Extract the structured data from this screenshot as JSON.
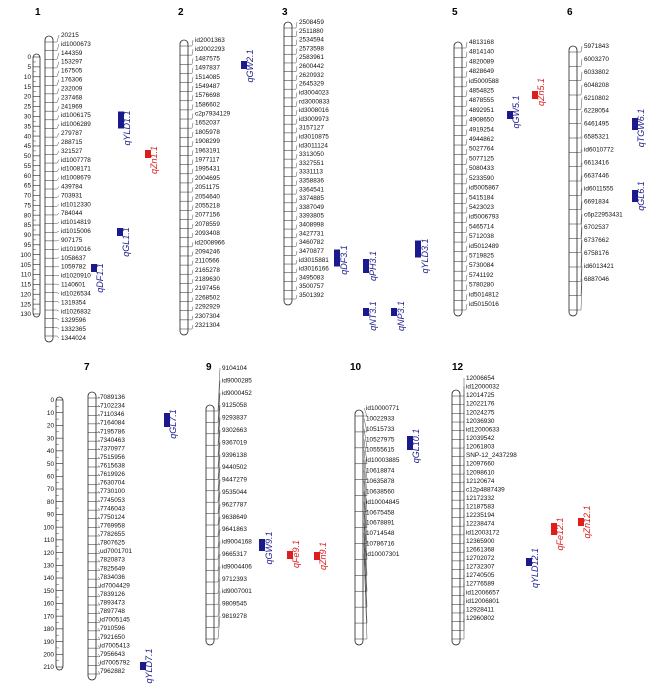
{
  "colors": {
    "blue": "#1a1a8c",
    "red": "#dc1e1e",
    "line": "#222222",
    "chrom_fill": "#ffffff"
  },
  "ruler": {
    "top": [
      "0",
      "5",
      "10",
      "15",
      "20",
      "25",
      "30",
      "35",
      "40",
      "45",
      "50",
      "55",
      "60",
      "65",
      "70",
      "75",
      "80",
      "85",
      "90",
      "95",
      "100",
      "105",
      "110",
      "115",
      "120",
      "125",
      "130"
    ],
    "bottom": [
      "0",
      "10",
      "20",
      "30",
      "40",
      "50",
      "60",
      "70",
      "80",
      "90",
      "100",
      "110",
      "120",
      "130",
      "140",
      "150",
      "160",
      "170",
      "180",
      "190",
      "200",
      "210"
    ]
  },
  "chromosomes": [
    {
      "name": "1",
      "markers": [
        "20215",
        "id1000673",
        "144359",
        "153297",
        "167505",
        "176306",
        "232009",
        "237468",
        "241969",
        "id1006175",
        "id1006289",
        "279787",
        "288715",
        "321527",
        "id1007778",
        "id1008171",
        "id1008679",
        "439784",
        "703931",
        "id1012330",
        "784044",
        "id1014819",
        "id1015006",
        "907175",
        "id1019016",
        "1058637",
        "1059782",
        "id1020910",
        "1140601",
        "id1026534",
        "1319354",
        "id1026832",
        "1329596",
        "1332365",
        "1344024"
      ],
      "qtls": [
        {
          "label": "qYLD1.1",
          "color": "blue"
        },
        {
          "label": "qZn1.1",
          "color": "red"
        },
        {
          "label": "qGL1.1",
          "color": "blue"
        },
        {
          "label": "qDF1.1",
          "color": "blue"
        }
      ]
    },
    {
      "name": "2",
      "markers": [
        "id2001363",
        "id2002293",
        "1487575",
        "1497837",
        "1514085",
        "1549487",
        "1576698",
        "1586602",
        "c2p7934129",
        "1652037",
        "1805978",
        "1908299",
        "1963191",
        "1977117",
        "1995431",
        "2004695",
        "2051175",
        "2054640",
        "2055218",
        "2077156",
        "2078559",
        "2093408",
        "id2008966",
        "2094246",
        "2110566",
        "2165278",
        "2189630",
        "2197456",
        "2268502",
        "2292929",
        "2307304",
        "2321304"
      ],
      "qtls": [
        {
          "label": "qGW2.1",
          "color": "blue"
        }
      ]
    },
    {
      "name": "3",
      "markers": [
        "2508459",
        "2511880",
        "2534594",
        "2573598",
        "2583961",
        "2600442",
        "2620932",
        "2645329",
        "id3004023",
        "rd3000833",
        "id3008016",
        "id3009973",
        "3157127",
        "id3010875",
        "id3011124",
        "3313050",
        "3327551",
        "3331113",
        "3358836",
        "3364541",
        "3374885",
        "3387049",
        "3393805",
        "3408998",
        "3427731",
        "3460782",
        "3470877",
        "id3015881",
        "id3016166",
        "3495083",
        "3500757",
        "3501392"
      ],
      "qtls": [
        {
          "label": "qDF3.1",
          "color": "blue"
        },
        {
          "label": "qPH3.1",
          "color": "blue"
        },
        {
          "label": "qYLD3.1",
          "color": "blue"
        },
        {
          "label": "qNT3.1",
          "color": "blue"
        },
        {
          "label": "qNP3.1",
          "color": "blue"
        }
      ]
    },
    {
      "name": "5",
      "markers": [
        "4813168",
        "4814140",
        "4820089",
        "4828649",
        "id5000588",
        "4854825",
        "4878555",
        "4892951",
        "4908650",
        "4919254",
        "4944862",
        "5027764",
        "5077125",
        "5080433",
        "5233590",
        "id5005867",
        "5415184",
        "5423023",
        "id5006793",
        "5465714",
        "5712038",
        "id5012489",
        "5719825",
        "5730084",
        "5741192",
        "5780280",
        "id5014812",
        "id5015016"
      ],
      "qtls": [
        {
          "label": "qGW5.1",
          "color": "blue"
        },
        {
          "label": "qZn5.1",
          "color": "red"
        }
      ]
    },
    {
      "name": "6",
      "markers": [
        "5971843",
        "6003270",
        "6033802",
        "6048208",
        "6210802",
        "6228054",
        "6461495",
        "6585321",
        "id6010772",
        "6613416",
        "6637446",
        "id6011555",
        "6691834",
        "c6p22953431",
        "6702537",
        "6737662",
        "6758176",
        "id6013421",
        "6887046"
      ],
      "qtls": [
        {
          "label": "qTGW6.1",
          "color": "blue"
        },
        {
          "label": "qGL6.1",
          "color": "blue"
        }
      ]
    },
    {
      "name": "7",
      "markers": [
        "7089136",
        "7102234",
        "7110346",
        "7164084",
        "7195786",
        "7340463",
        "7370977",
        "7515956",
        "7615638",
        "7619926",
        "7630704",
        "7730100",
        "7745053",
        "7746043",
        "7750124",
        "7769958",
        "7782655",
        "7807625",
        "ud7001701",
        "7820873",
        "7825649",
        "7834036",
        "id7004429",
        "7839126",
        "7893473",
        "7897748",
        "id7005145",
        "7910596",
        "7921650",
        "id7005413",
        "7956643",
        "id7005792",
        "7962882"
      ],
      "qtls": [
        {
          "label": "qGL7.1",
          "color": "blue"
        },
        {
          "label": "qYLD7.1",
          "color": "blue"
        }
      ]
    },
    {
      "name": "9",
      "markers": [
        "9104104",
        "id9000285",
        "id9000452",
        "9125058",
        "9293837",
        "9302663",
        "9367019",
        "9396138",
        "9440502",
        "9447279",
        "9535044",
        "9627787",
        "9638649",
        "9641863",
        "id9004168",
        "9665317",
        "id9004406",
        "9712393",
        "id9007001",
        "9809545",
        "9819278"
      ],
      "qtls": [
        {
          "label": "qGW9.1",
          "color": "blue"
        },
        {
          "label": "qFe9.1",
          "color": "red"
        },
        {
          "label": "qZn9.1",
          "color": "red"
        }
      ]
    },
    {
      "name": "10",
      "markers": [
        "id10000771",
        "10022933",
        "10515733",
        "10527975",
        "10555615",
        "id10003885",
        "10618874",
        "10635878",
        "10638560",
        "id10004845",
        "10675458",
        "10678891",
        "10714548",
        "10786716",
        "id10007301"
      ],
      "qtls": [
        {
          "label": "qGL10.1",
          "color": "blue"
        }
      ]
    },
    {
      "name": "12",
      "markers": [
        "12006654",
        "id12000032",
        "12014725",
        "12022176",
        "12024275",
        "12036930",
        "id12000633",
        "12039542",
        "12061803",
        "SNP-12_2437298",
        "12097660",
        "12098610",
        "12120674",
        "c12p4887439",
        "12172332",
        "12187583",
        "12235194",
        "12238474",
        "id12003172",
        "12365900",
        "12661368",
        "12702072",
        "12732307",
        "12740505",
        "12776589",
        "id12006657",
        "id12006801",
        "12928411",
        "12960802"
      ],
      "qtls": [
        {
          "label": "qZn12.1",
          "color": "red"
        },
        {
          "label": "qFe12.1",
          "color": "red"
        },
        {
          "label": "qYLD12.1",
          "color": "blue"
        }
      ]
    }
  ]
}
